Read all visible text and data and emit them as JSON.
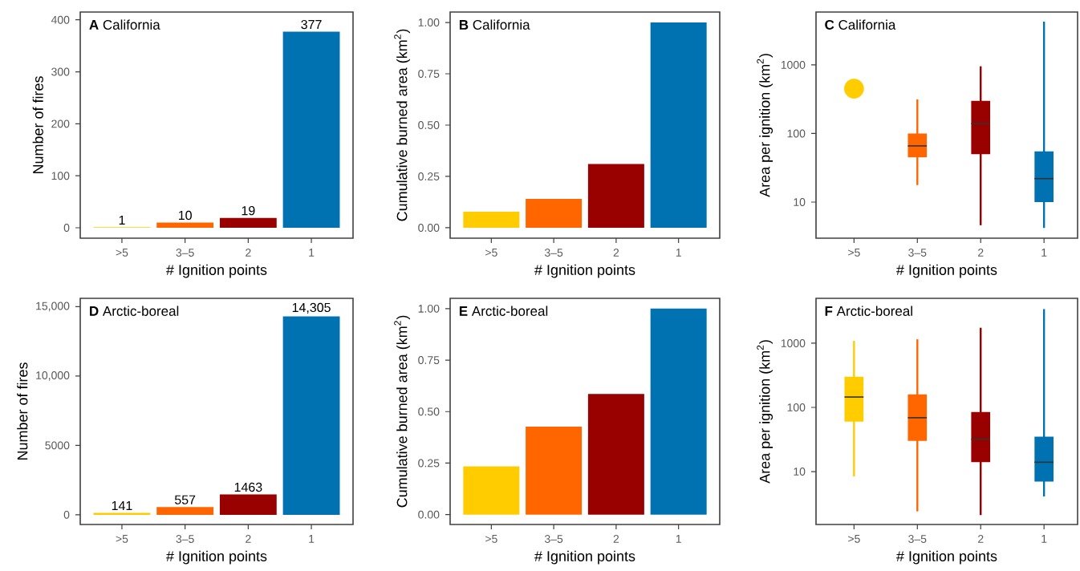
{
  "chart_data": [
    {
      "type": "bar",
      "title": "**A** California",
      "xlabel": "# Ignition points",
      "ylabel": "Number of fires",
      "categories": [
        ">5",
        "3–5",
        "2",
        "1"
      ],
      "values": [
        1,
        10,
        19,
        377
      ],
      "colors": [
        "#ffcc00",
        "#ff6600",
        "#990000",
        "#0072b2"
      ],
      "value_labels": [
        "1",
        "10",
        "19",
        "377"
      ],
      "ylim": [
        -20,
        415
      ],
      "yticks": [
        0,
        100,
        200,
        300,
        400
      ]
    },
    {
      "type": "bar",
      "title": "**B** California",
      "xlabel": "# Ignition points",
      "ylabel": "Cumulative burned area (km$^{2}$)",
      "categories": [
        ">5",
        "3–5",
        "2",
        "1"
      ],
      "values": [
        0.078,
        0.14,
        0.31,
        1.0
      ],
      "colors": [
        "#ffcc00",
        "#ff6600",
        "#990000",
        "#0072b2"
      ],
      "ylim": [
        -0.051,
        1.051
      ],
      "yticks": [
        {
          "value": 0,
          "label": "0.00"
        },
        {
          "value": 0.25,
          "label": "0.25"
        },
        {
          "value": 0.5,
          "label": "0.50"
        },
        {
          "value": 0.75,
          "label": "0.75"
        },
        {
          "value": 1,
          "label": "1.00"
        }
      ]
    },
    {
      "type": "box",
      "title": "**C** California",
      "xlabel": "# Ignition points",
      "ylabel": "Area per ignition (km$^{2}$)",
      "log": "y",
      "categories": [
        ">5",
        "3–5",
        "2",
        "1"
      ],
      "ylim": [
        2.98,
        5900
      ],
      "yticks": [
        10,
        100,
        1000
      ],
      "colors": [
        "#ffcc00",
        "#ff6600",
        "#990000",
        "#0072b2"
      ],
      "boxes": [
        null,
        {
          "low": 17.7,
          "q1": 45,
          "median": 66,
          "q3": 100,
          "high": 314
        },
        {
          "low": 4.6,
          "q1": 50,
          "median": 140,
          "q3": 300,
          "high": 955
        },
        {
          "low": 4.2,
          "q1": 10,
          "median": 22,
          "q3": 55,
          "high": 4270
        }
      ],
      "series": [
        {
          "type": "scatter",
          "marker": "circle",
          "color": "#ffcc00",
          "x": [
            ">5"
          ],
          "values": [
            450
          ]
        }
      ]
    },
    {
      "type": "bar",
      "title": "**D** Arctic-boreal",
      "xlabel": "# Ignition points",
      "ylabel": "Number of fires",
      "categories": [
        ">5",
        "3–5",
        "2",
        "1"
      ],
      "values": [
        141,
        557,
        1463,
        14305
      ],
      "colors": [
        "#ffcc00",
        "#ff6600",
        "#990000",
        "#0072b2"
      ],
      "value_labels": [
        "141",
        "557",
        "1463",
        "14,305"
      ],
      "ylim": [
        -700,
        15600
      ],
      "yticks": [
        0,
        5000,
        {
          "value": 10000,
          "label": "10,000"
        },
        {
          "value": 15000,
          "label": "15,000"
        }
      ]
    },
    {
      "type": "bar",
      "title": "**E** Arctic-boreal",
      "xlabel": "# Ignition points",
      "ylabel": "Cumulative burned area (km$^{2}$)",
      "categories": [
        ">5",
        "3–5",
        "2",
        "1"
      ],
      "values": [
        0.234,
        0.427,
        0.586,
        1.0
      ],
      "colors": [
        "#ffcc00",
        "#ff6600",
        "#990000",
        "#0072b2"
      ],
      "ylim": [
        -0.048,
        1.05
      ],
      "yticks": [
        {
          "value": 0,
          "label": "0.00"
        },
        {
          "value": 0.25,
          "label": "0.25"
        },
        {
          "value": 0.5,
          "label": "0.50"
        },
        {
          "value": 0.75,
          "label": "0.75"
        },
        {
          "value": 1,
          "label": "1.00"
        }
      ]
    },
    {
      "type": "box",
      "title": "**F** Arctic-boreal",
      "xlabel": "# Ignition points",
      "ylabel": "Area per ignition (km$^{2}$)",
      "log": "y",
      "categories": [
        ">5",
        "3–5",
        "2",
        "1"
      ],
      "ylim": [
        1.5,
        5000
      ],
      "yticks": [
        10,
        100,
        1000
      ],
      "colors": [
        "#ffcc00",
        "#ff6600",
        "#990000",
        "#0072b2"
      ],
      "boxes": [
        {
          "low": 8.4,
          "q1": 60,
          "median": 145,
          "q3": 300,
          "high": 1090
        },
        {
          "low": 2.4,
          "q1": 30,
          "median": 69,
          "q3": 160,
          "high": 1150
        },
        {
          "low": 2.1,
          "q1": 14,
          "median": 32,
          "q3": 85,
          "high": 1740
        },
        {
          "low": 4.1,
          "q1": 7,
          "median": 14,
          "q3": 35,
          "high": 3400
        }
      ]
    }
  ]
}
